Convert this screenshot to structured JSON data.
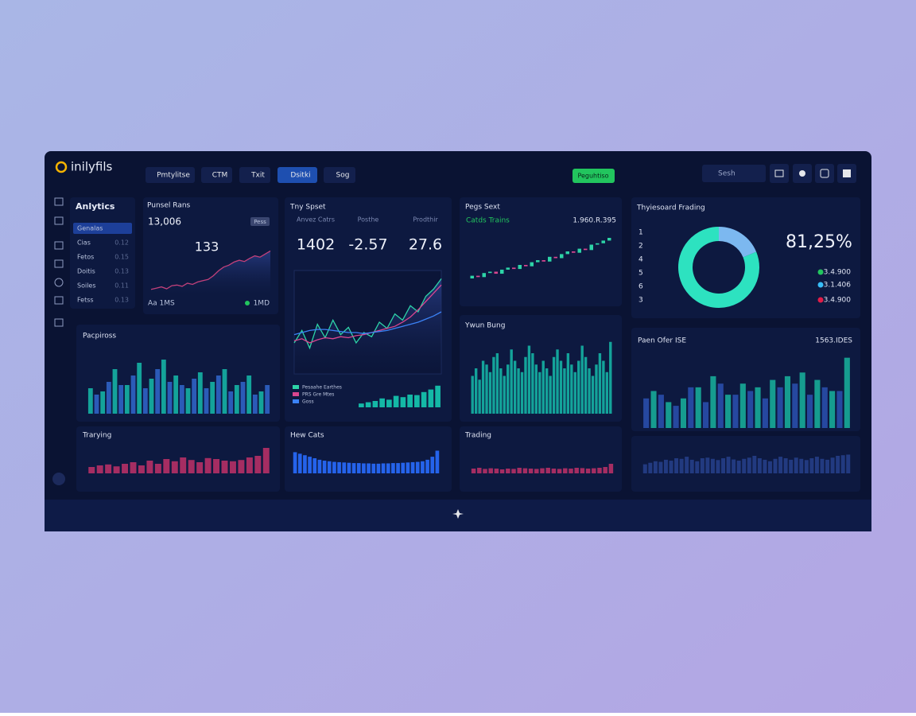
{
  "brand": "inilyfils",
  "tabs": [
    "Pmtylitse",
    "CTM",
    "Txit",
    "Dsitki",
    "Sog"
  ],
  "button": "Peguhtiso",
  "search": "Sesh",
  "sidebar": {
    "title": "Anlytics",
    "items": [
      {
        "label": "Genalas"
      },
      {
        "label": "Cias",
        "value": "0.12"
      },
      {
        "label": "Fetos",
        "value": "0.15"
      },
      {
        "label": "Doitis",
        "value": "0.13"
      },
      {
        "label": "Soiles",
        "value": "0.11"
      },
      {
        "label": "Fetss",
        "value": "0.13"
      }
    ]
  },
  "chart_data": [
    {
      "type": "line",
      "title": "Punsel Rans",
      "kpi": "13,006",
      "badge": "Pess",
      "annotation": "133",
      "footer_left": "Aa 1MS",
      "footer_right": "1MD",
      "color": "#c2407a",
      "ylim": [
        0,
        100
      ],
      "values": [
        8,
        10,
        12,
        9,
        14,
        15,
        13,
        18,
        16,
        20,
        22,
        24,
        30,
        38,
        44,
        47,
        52,
        55,
        53,
        58,
        62,
        60,
        65,
        70
      ]
    },
    {
      "type": "area",
      "title": "Tny Spset",
      "ylim": [
        0,
        100
      ],
      "kpis": [
        {
          "label": "Anvez Catrs",
          "value": "1402"
        },
        {
          "label": "Posthe",
          "value": "-2.57"
        },
        {
          "label": "Prodthir",
          "value": "27.6"
        }
      ],
      "series": [
        {
          "name": "Pesaahe Earthes",
          "color": "#2dd4a7",
          "values": [
            30,
            42,
            25,
            48,
            35,
            52,
            38,
            45,
            30,
            40,
            36,
            50,
            44,
            58,
            52,
            66,
            60,
            75,
            82,
            92
          ]
        },
        {
          "name": "PRS Gre Mtes",
          "color": "#d9468f",
          "values": [
            32,
            34,
            30,
            33,
            35,
            34,
            36,
            35,
            37,
            38,
            40,
            42,
            44,
            46,
            50,
            55,
            62,
            70,
            78,
            86
          ]
        },
        {
          "name": "Goss",
          "color": "#3b82f6",
          "values": [
            38,
            40,
            42,
            43,
            43,
            42,
            41,
            40,
            40,
            39,
            40,
            41,
            42,
            44,
            46,
            48,
            50,
            53,
            56,
            60
          ]
        }
      ]
    },
    {
      "type": "bar",
      "color": "#14b8a6",
      "ylim": [
        0,
        100
      ],
      "values": [
        15,
        20,
        25,
        35,
        30,
        45,
        40,
        50,
        48,
        60,
        70,
        85
      ]
    },
    {
      "type": "candlestick",
      "title": "Pegs Sext",
      "subtitle": "Catds Trains",
      "annotation": "1.960.R.395",
      "ylim": [
        0,
        100
      ],
      "up_color": "#2dd4a7",
      "down_color": "#d9468f",
      "open": [
        20,
        24,
        22,
        28,
        30,
        27,
        33,
        36,
        34,
        40,
        38,
        44,
        47,
        45,
        52,
        50,
        56,
        60,
        58,
        64,
        62,
        70,
        72,
        76
      ],
      "close": [
        24,
        22,
        28,
        30,
        27,
        33,
        36,
        34,
        40,
        38,
        44,
        47,
        45,
        52,
        50,
        56,
        60,
        58,
        64,
        62,
        70,
        72,
        76,
        80
      ]
    },
    {
      "type": "pie",
      "title": "Thyiesoard Frading",
      "values": [
        81.25,
        18.75
      ],
      "value_labels": [
        "81,25%",
        null
      ],
      "colors": [
        "#2de2c0",
        "#7cb8f0"
      ],
      "ranks": [
        "1",
        "2",
        "4",
        "5",
        "6",
        "3"
      ],
      "legend": [
        {
          "label": "3.4.900",
          "color": "#22c55e"
        },
        {
          "label": "3.1.406",
          "color": "#38bdf8"
        },
        {
          "label": "3.4.900",
          "color": "#e11d48"
        }
      ]
    },
    {
      "type": "bar",
      "title": "Pacpiross",
      "ylim": [
        0,
        100
      ],
      "series": [
        {
          "color": "#14a39a",
          "values": [
            40,
            35,
            70,
            45,
            80,
            55,
            85,
            60,
            40,
            65,
            50,
            70,
            45,
            60,
            35
          ]
        },
        {
          "color": "#2b5bb8",
          "values": [
            30,
            50,
            45,
            60,
            40,
            70,
            50,
            45,
            55,
            40,
            60,
            35,
            50,
            30,
            45
          ]
        }
      ]
    },
    {
      "type": "bar",
      "title": "Ywun Bung",
      "color": "#14a39a",
      "ylim": [
        0,
        100
      ],
      "values": [
        50,
        60,
        45,
        70,
        65,
        55,
        75,
        80,
        60,
        50,
        65,
        85,
        70,
        60,
        55,
        75,
        90,
        80,
        65,
        55,
        70,
        60,
        50,
        75,
        85,
        70,
        60,
        80,
        65,
        55,
        70,
        90,
        75,
        60,
        50,
        65,
        80,
        70,
        55,
        95
      ]
    },
    {
      "type": "bar",
      "title": "Paen Ofer ISE",
      "annotation": "1563.IDES",
      "ylim": [
        0,
        100
      ],
      "series": [
        {
          "color": "#2648a0",
          "values": [
            40,
            45,
            30,
            55,
            35,
            60,
            45,
            50,
            40,
            55,
            60,
            45,
            55,
            50
          ]
        },
        {
          "color": "#169c8f",
          "values": [
            50,
            35,
            40,
            55,
            70,
            45,
            60,
            55,
            65,
            70,
            75,
            65,
            50,
            95
          ]
        }
      ]
    },
    {
      "type": "bar",
      "title": "Trarying",
      "color": "#a52d62",
      "ylim": [
        0,
        100
      ],
      "values": [
        20,
        25,
        28,
        22,
        30,
        35,
        25,
        40,
        30,
        45,
        38,
        50,
        42,
        35,
        48,
        45,
        40,
        38,
        42,
        50,
        55,
        80
      ]
    },
    {
      "type": "bar",
      "title": "Hew Cats",
      "color": "#2563eb",
      "ylim": [
        0,
        100
      ],
      "values": [
        70,
        65,
        60,
        55,
        50,
        45,
        42,
        40,
        38,
        37,
        36,
        35,
        34,
        34,
        33,
        33,
        32,
        32,
        33,
        33,
        34,
        34,
        35,
        36,
        37,
        38,
        40,
        45,
        55,
        75
      ]
    },
    {
      "type": "bar",
      "title": "Trading",
      "color": "#a52d62",
      "ylim": [
        0,
        100
      ],
      "values": [
        30,
        35,
        28,
        32,
        30,
        25,
        30,
        28,
        35,
        32,
        30,
        28,
        32,
        35,
        30,
        28,
        32,
        30,
        35,
        33,
        30,
        32,
        35,
        40,
        60
      ]
    },
    {
      "type": "bar",
      "color": "#223a80",
      "ylim": [
        0,
        100
      ],
      "values": [
        30,
        35,
        40,
        38,
        45,
        42,
        50,
        48,
        55,
        45,
        40,
        50,
        52,
        48,
        44,
        50,
        55,
        46,
        42,
        48,
        52,
        58,
        50,
        45,
        40,
        48,
        55,
        50,
        45,
        52,
        48,
        44,
        50,
        55,
        48,
        45,
        52,
        58,
        60,
        62
      ]
    }
  ]
}
